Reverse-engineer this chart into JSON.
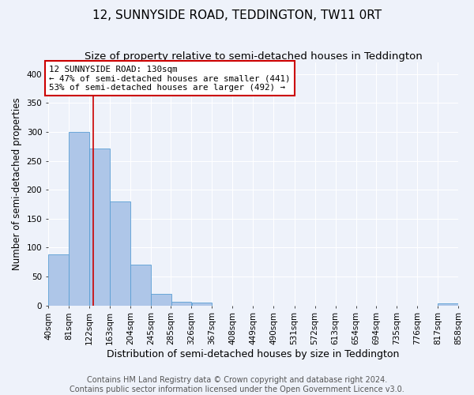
{
  "title": "12, SUNNYSIDE ROAD, TEDDINGTON, TW11 0RT",
  "subtitle": "Size of property relative to semi-detached houses in Teddington",
  "xlabel": "Distribution of semi-detached houses by size in Teddington",
  "ylabel": "Number of semi-detached properties",
  "footer_line1": "Contains HM Land Registry data © Crown copyright and database right 2024.",
  "footer_line2": "Contains public sector information licensed under the Open Government Licence v3.0.",
  "bins": [
    40,
    81,
    122,
    163,
    204,
    245,
    285,
    326,
    367,
    408,
    449,
    490,
    531,
    572,
    613,
    654,
    694,
    735,
    776,
    817,
    858
  ],
  "bar_heights": [
    89,
    300,
    272,
    180,
    70,
    20,
    6,
    5,
    0,
    0,
    0,
    0,
    0,
    0,
    0,
    0,
    0,
    0,
    0,
    4
  ],
  "bar_color": "#aec6e8",
  "bar_edge_color": "#5a9fd4",
  "property_size": 130,
  "property_line_color": "#cc0000",
  "annotation_text": "12 SUNNYSIDE ROAD: 130sqm\n← 47% of semi-detached houses are smaller (441)\n53% of semi-detached houses are larger (492) →",
  "annotation_box_color": "#ffffff",
  "annotation_box_edge": "#cc0000",
  "ylim": [
    0,
    420
  ],
  "background_color": "#eef2fa",
  "grid_color": "#ffffff",
  "title_fontsize": 11,
  "subtitle_fontsize": 9.5,
  "xlabel_fontsize": 9,
  "ylabel_fontsize": 8.5,
  "tick_fontsize": 7.5,
  "footer_fontsize": 7
}
